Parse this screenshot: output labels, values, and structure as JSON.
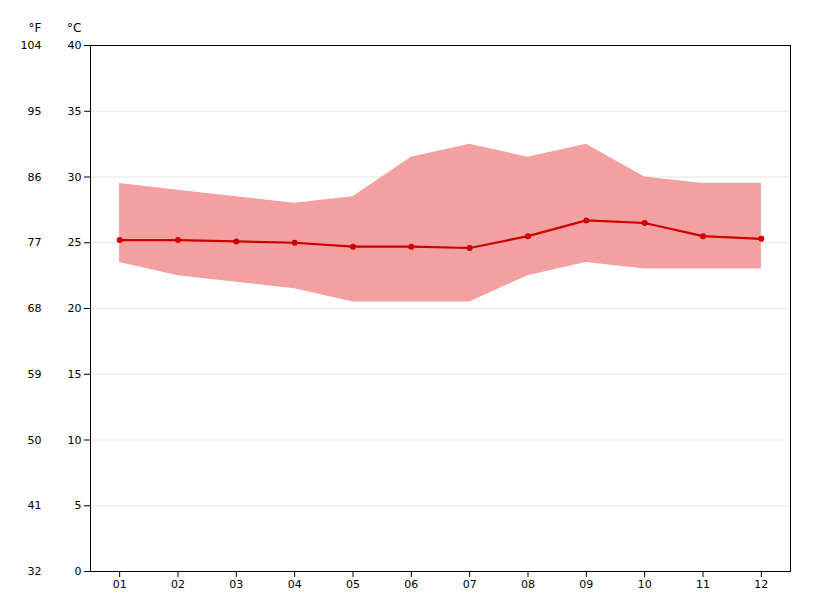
{
  "chart_data": {
    "type": "line",
    "x": [
      1,
      2,
      3,
      4,
      5,
      6,
      7,
      8,
      9,
      10,
      11,
      12
    ],
    "xlim": [
      0.5,
      12.5
    ],
    "xticks": [
      {
        "value": 1,
        "label": "01"
      },
      {
        "value": 2,
        "label": "02"
      },
      {
        "value": 3,
        "label": "03"
      },
      {
        "value": 4,
        "label": "04"
      },
      {
        "value": 5,
        "label": "05"
      },
      {
        "value": 6,
        "label": "06"
      },
      {
        "value": 7,
        "label": "07"
      },
      {
        "value": 8,
        "label": "08"
      },
      {
        "value": 9,
        "label": "09"
      },
      {
        "value": 10,
        "label": "10"
      },
      {
        "value": 11,
        "label": "11"
      },
      {
        "value": 12,
        "label": "12"
      }
    ],
    "ylabel": "°C",
    "ylim": [
      0,
      40
    ],
    "yticks": [
      0,
      5,
      10,
      15,
      20,
      25,
      30,
      35,
      40
    ],
    "y2label": "°F",
    "y2lim": [
      32,
      104
    ],
    "y2ticks": [
      32,
      41,
      50,
      59,
      68,
      77,
      86,
      95,
      104
    ],
    "grid": true,
    "series": [
      {
        "type": "area",
        "color": "#f4a0a0",
        "low": [
          23.5,
          22.5,
          22.0,
          21.5,
          20.5,
          20.5,
          20.5,
          22.5,
          23.5,
          23.0,
          23.0,
          23.0
        ],
        "high": [
          29.5,
          29.0,
          28.5,
          28.0,
          28.5,
          31.5,
          32.5,
          31.5,
          32.5,
          30.0,
          29.5,
          29.5
        ]
      },
      {
        "type": "line",
        "color": "#cc0000",
        "marker": "circle",
        "values": [
          25.2,
          25.2,
          25.1,
          25.0,
          24.7,
          24.7,
          24.6,
          25.5,
          26.7,
          26.5,
          25.5,
          25.3
        ]
      }
    ]
  }
}
